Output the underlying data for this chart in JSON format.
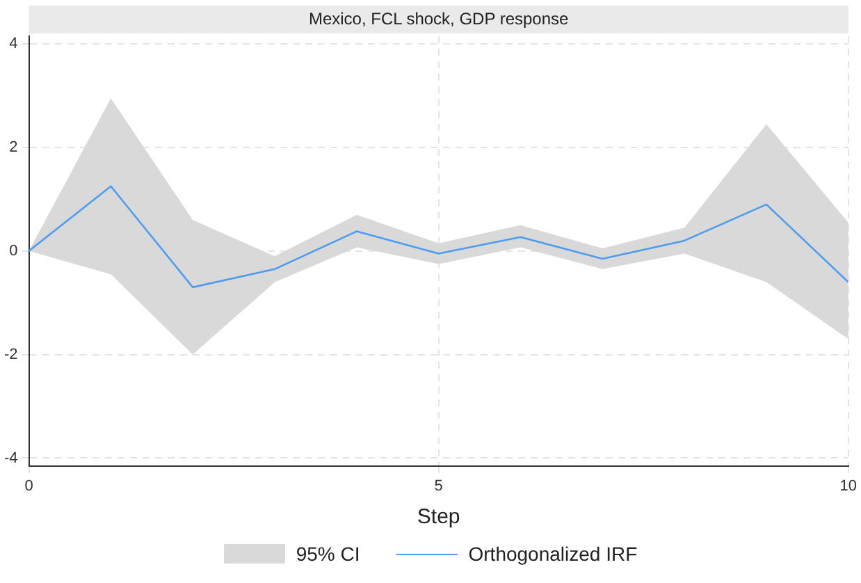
{
  "chart_data": {
    "type": "line",
    "title": "Mexico, FCL shock, GDP response",
    "xlabel": "Step",
    "annotations": [
      "95% CI"
    ],
    "x": [
      0,
      1,
      2,
      3,
      4,
      5,
      6,
      7,
      8,
      9,
      10
    ],
    "series": [
      {
        "name": "Orthogonalized IRF",
        "color": "#4d9cf0",
        "values": [
          0,
          1.25,
          -0.7,
          -0.35,
          0.38,
          -0.05,
          0.27,
          -0.15,
          0.2,
          0.9,
          -0.6
        ],
        "lower": [
          0,
          -0.45,
          -2.0,
          -0.6,
          0.07,
          -0.25,
          0.07,
          -0.35,
          -0.05,
          -0.6,
          -1.7
        ],
        "upper": [
          0,
          2.95,
          0.6,
          -0.1,
          0.7,
          0.15,
          0.5,
          0.05,
          0.45,
          2.45,
          0.55
        ]
      }
    ],
    "xlim": [
      0,
      10
    ],
    "xticks": [
      0,
      5,
      10
    ],
    "ylim": [
      -4.15,
      4.15
    ],
    "yticks": [
      -4,
      -2,
      0,
      2,
      4
    ],
    "grid": true,
    "legend": "bottom",
    "marker": "none",
    "line_style": "solid"
  }
}
